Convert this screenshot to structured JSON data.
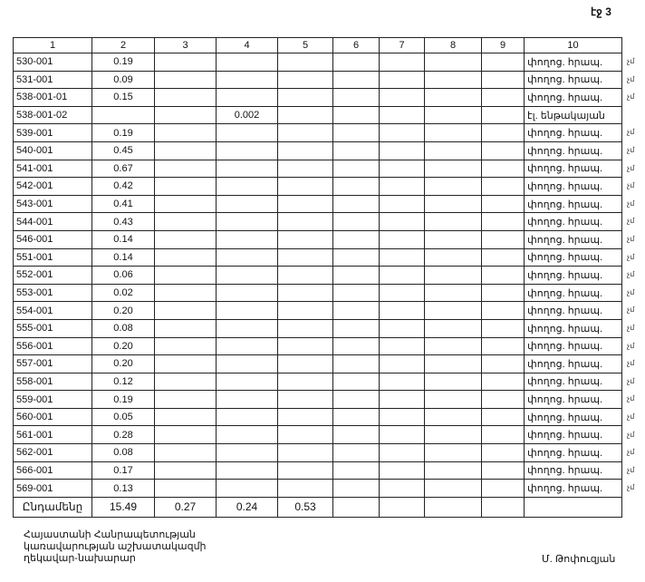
{
  "page_label": "էջ 3",
  "table": {
    "headers": [
      "1",
      "2",
      "3",
      "4",
      "5",
      "6",
      "7",
      "8",
      "9",
      "10"
    ],
    "rows": [
      [
        "530-001",
        "0.19",
        "",
        "",
        "",
        "",
        "",
        "",
        "",
        "փողոց. հրապ."
      ],
      [
        "531-001",
        "0.09",
        "",
        "",
        "",
        "",
        "",
        "",
        "",
        "փողոց. հրապ."
      ],
      [
        "538-001-01",
        "0.15",
        "",
        "",
        "",
        "",
        "",
        "",
        "",
        "փողոց. հրապ."
      ],
      [
        "538-001-02",
        "",
        "",
        "0.002",
        "",
        "",
        "",
        "",
        "",
        "էլ. ենթակայան"
      ],
      [
        "539-001",
        "0.19",
        "",
        "",
        "",
        "",
        "",
        "",
        "",
        "փողոց. հրապ."
      ],
      [
        "540-001",
        "0.45",
        "",
        "",
        "",
        "",
        "",
        "",
        "",
        "փողոց. հրապ."
      ],
      [
        "541-001",
        "0.67",
        "",
        "",
        "",
        "",
        "",
        "",
        "",
        "փողոց. հրապ."
      ],
      [
        "542-001",
        "0.42",
        "",
        "",
        "",
        "",
        "",
        "",
        "",
        "փողոց. հրապ."
      ],
      [
        "543-001",
        "0.41",
        "",
        "",
        "",
        "",
        "",
        "",
        "",
        "փողոց. հրապ."
      ],
      [
        "544-001",
        "0.43",
        "",
        "",
        "",
        "",
        "",
        "",
        "",
        "փողոց. հրապ."
      ],
      [
        "546-001",
        "0.14",
        "",
        "",
        "",
        "",
        "",
        "",
        "",
        "փողոց. հրապ."
      ],
      [
        "551-001",
        "0.14",
        "",
        "",
        "",
        "",
        "",
        "",
        "",
        "փողոց. հրապ."
      ],
      [
        "552-001",
        "0.06",
        "",
        "",
        "",
        "",
        "",
        "",
        "",
        "փողոց. հրապ."
      ],
      [
        "553-001",
        "0.02",
        "",
        "",
        "",
        "",
        "",
        "",
        "",
        "փողոց. հրապ."
      ],
      [
        "554-001",
        "0.20",
        "",
        "",
        "",
        "",
        "",
        "",
        "",
        "փողոց. հրապ."
      ],
      [
        "555-001",
        "0.08",
        "",
        "",
        "",
        "",
        "",
        "",
        "",
        "փողոց. հրապ."
      ],
      [
        "556-001",
        "0.20",
        "",
        "",
        "",
        "",
        "",
        "",
        "",
        "փողոց. հրապ."
      ],
      [
        "557-001",
        "0.20",
        "",
        "",
        "",
        "",
        "",
        "",
        "",
        "փողոց. հրապ."
      ],
      [
        "558-001",
        "0.12",
        "",
        "",
        "",
        "",
        "",
        "",
        "",
        "փողոց. հրապ."
      ],
      [
        "559-001",
        "0.19",
        "",
        "",
        "",
        "",
        "",
        "",
        "",
        "փողոց. հրապ."
      ],
      [
        "560-001",
        "0.05",
        "",
        "",
        "",
        "",
        "",
        "",
        "",
        "փողոց. հրապ."
      ],
      [
        "561-001",
        "0.28",
        "",
        "",
        "",
        "",
        "",
        "",
        "",
        "փողոց. հրապ."
      ],
      [
        "562-001",
        "0.08",
        "",
        "",
        "",
        "",
        "",
        "",
        "",
        "փողոց. հրապ."
      ],
      [
        "566-001",
        "0.17",
        "",
        "",
        "",
        "",
        "",
        "",
        "",
        "փողոց. հրապ."
      ],
      [
        "569-001",
        "0.13",
        "",
        "",
        "",
        "",
        "",
        "",
        "",
        "փողոց. հրապ."
      ]
    ],
    "total": [
      "Ընդամենը",
      "15.49",
      "0.27",
      "0.24",
      "0.53",
      "",
      "",
      "",
      "",
      ""
    ],
    "margin_mark": "չմ"
  },
  "footer": {
    "lines": [
      "Հայաստանի Հանրապետության",
      "կառավարության աշխատակազմի",
      "ղեկավար-նախարար"
    ],
    "signatory": "Մ. Թոփուզյան"
  }
}
